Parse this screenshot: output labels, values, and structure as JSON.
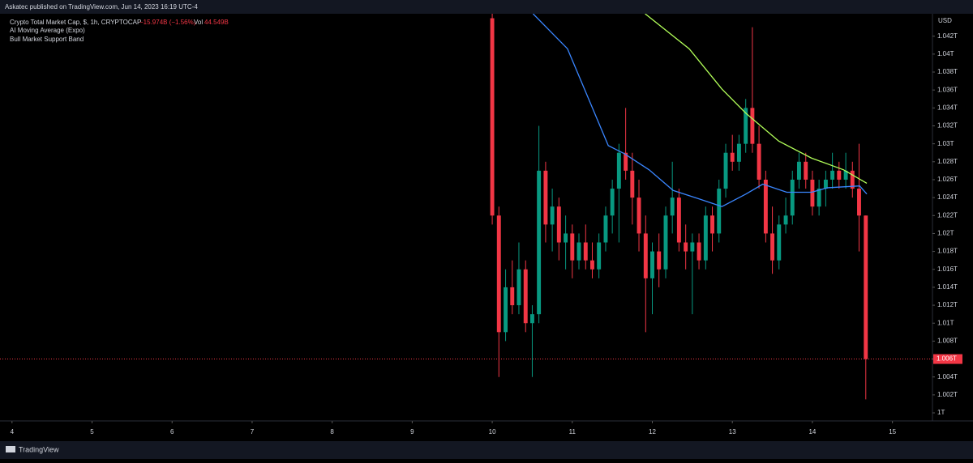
{
  "header": {
    "publisher": "Askatec published on TradingView.com, Jun 14, 2023 16:19 UTC-4"
  },
  "chart_data": {
    "type": "candlestick",
    "title": "Crypto Total Market Cap, $, 1h, CRYPTOCAP",
    "change": "−15.974B (−1.56%)",
    "volume_label": "Vol",
    "volume": "44.549B",
    "y_axis_label": "USD",
    "x": [
      10.0,
      10.083,
      10.167,
      10.25,
      10.333,
      10.417,
      10.5,
      10.583,
      10.667,
      10.75,
      10.833,
      10.917,
      11.0,
      11.083,
      11.167,
      11.25,
      11.333,
      11.417,
      11.5,
      11.583,
      11.667,
      11.75,
      11.833,
      11.917,
      12.0,
      12.083,
      12.167,
      12.25,
      12.333,
      12.417,
      12.5,
      12.583,
      12.667,
      12.75,
      12.833,
      12.917,
      13.0,
      13.083,
      13.167,
      13.25,
      13.333,
      13.417,
      13.5,
      13.583,
      13.667,
      13.75,
      13.833,
      13.917,
      14.0,
      14.083,
      14.167,
      14.25,
      14.333,
      14.417,
      14.5,
      14.583,
      14.667
    ],
    "open": [
      1.044,
      1.022,
      1.009,
      1.014,
      1.012,
      1.016,
      1.01,
      1.011,
      1.027,
      1.021,
      1.023,
      1.019,
      1.02,
      1.017,
      1.019,
      1.017,
      1.016,
      1.019,
      1.022,
      1.025,
      1.029,
      1.027,
      1.024,
      1.02,
      1.015,
      1.018,
      1.016,
      1.022,
      1.024,
      1.019,
      1.018,
      1.019,
      1.017,
      1.022,
      1.02,
      1.025,
      1.029,
      1.028,
      1.03,
      1.034,
      1.03,
      1.026,
      1.02,
      1.017,
      1.021,
      1.022,
      1.026,
      1.028,
      1.026,
      1.023,
      1.025,
      1.026,
      1.027,
      1.026,
      1.027,
      1.025,
      1.022
    ],
    "high": [
      1.0445,
      1.023,
      1.016,
      1.017,
      1.019,
      1.017,
      1.012,
      1.032,
      1.028,
      1.025,
      1.024,
      1.022,
      1.021,
      1.02,
      1.021,
      1.019,
      1.02,
      1.023,
      1.026,
      1.03,
      1.034,
      1.029,
      1.026,
      1.022,
      1.019,
      1.02,
      1.023,
      1.028,
      1.025,
      1.021,
      1.02,
      1.02,
      1.023,
      1.023,
      1.026,
      1.03,
      1.031,
      1.031,
      1.035,
      1.043,
      1.032,
      1.027,
      1.023,
      1.022,
      1.024,
      1.027,
      1.029,
      1.029,
      1.027,
      1.026,
      1.027,
      1.029,
      1.028,
      1.029,
      1.028,
      1.03,
      1.022
    ],
    "low": [
      1.021,
      1.004,
      1.008,
      1.011,
      1.011,
      1.009,
      1.004,
      1.01,
      1.019,
      1.018,
      1.017,
      1.016,
      1.015,
      1.016,
      1.016,
      1.015,
      1.015,
      1.018,
      1.02,
      1.019,
      1.026,
      1.021,
      1.018,
      1.009,
      1.011,
      1.014,
      1.015,
      1.02,
      1.018,
      1.016,
      1.011,
      1.016,
      1.016,
      1.018,
      1.019,
      1.024,
      1.027,
      1.027,
      1.029,
      1.029,
      1.025,
      1.019,
      1.0155,
      1.016,
      1.02,
      1.021,
      1.025,
      1.025,
      1.022,
      1.022,
      1.023,
      1.025,
      1.025,
      1.025,
      1.024,
      1.018,
      1.0015
    ],
    "close": [
      1.022,
      1.009,
      1.014,
      1.012,
      1.016,
      1.01,
      1.011,
      1.027,
      1.021,
      1.023,
      1.019,
      1.02,
      1.017,
      1.019,
      1.017,
      1.016,
      1.019,
      1.022,
      1.025,
      1.029,
      1.027,
      1.024,
      1.02,
      1.015,
      1.018,
      1.016,
      1.022,
      1.024,
      1.019,
      1.018,
      1.019,
      1.017,
      1.022,
      1.02,
      1.025,
      1.029,
      1.028,
      1.03,
      1.034,
      1.03,
      1.026,
      1.02,
      1.017,
      1.021,
      1.022,
      1.026,
      1.028,
      1.026,
      1.023,
      1.025,
      1.026,
      1.027,
      1.026,
      1.027,
      1.025,
      1.022,
      1.006
    ],
    "up_color": "#089981",
    "down_color": "#f23645",
    "series": [
      {
        "name": "AI Moving Average (Expo)",
        "color": "#3a86ff",
        "x": [
          10.51,
          10.94,
          11.45,
          11.65,
          11.96,
          12.26,
          12.57,
          12.87,
          13.17,
          13.38,
          13.68,
          13.99,
          14.19,
          14.59,
          14.68
        ],
        "values": [
          1.0445,
          1.0406,
          1.0298,
          1.0289,
          1.0271,
          1.0248,
          1.0239,
          1.023,
          1.0244,
          1.0255,
          1.0246,
          1.0246,
          1.0251,
          1.0253,
          1.0244
        ]
      },
      {
        "name": "Bull Market Support Band",
        "color": "#b2ff59",
        "x": [
          11.91,
          12.46,
          12.87,
          13.17,
          13.58,
          13.99,
          14.39,
          14.68
        ],
        "values": [
          1.0445,
          1.0406,
          1.0361,
          1.0334,
          1.0303,
          1.0284,
          1.0271,
          1.0256
        ]
      }
    ],
    "last_price": {
      "value": 1.006,
      "label": "1.006T"
    },
    "xlim": [
      3.85,
      15.5
    ],
    "xticks": [
      4,
      5,
      6,
      7,
      8,
      9,
      10,
      11,
      12,
      13,
      14,
      15
    ],
    "ylim": [
      0.9991,
      1.0445
    ],
    "yticks": [
      {
        "value": 1.0,
        "label": "1T"
      },
      {
        "value": 1.002,
        "label": "1.002T"
      },
      {
        "value": 1.004,
        "label": "1.004T"
      },
      {
        "value": 1.006,
        "label": "1.006T"
      },
      {
        "value": 1.008,
        "label": "1.008T"
      },
      {
        "value": 1.01,
        "label": "1.01T"
      },
      {
        "value": 1.012,
        "label": "1.012T"
      },
      {
        "value": 1.014,
        "label": "1.014T"
      },
      {
        "value": 1.016,
        "label": "1.016T"
      },
      {
        "value": 1.018,
        "label": "1.018T"
      },
      {
        "value": 1.02,
        "label": "1.02T"
      },
      {
        "value": 1.022,
        "label": "1.022T"
      },
      {
        "value": 1.024,
        "label": "1.024T"
      },
      {
        "value": 1.026,
        "label": "1.026T"
      },
      {
        "value": 1.028,
        "label": "1.028T"
      },
      {
        "value": 1.03,
        "label": "1.03T"
      },
      {
        "value": 1.032,
        "label": "1.032T"
      },
      {
        "value": 1.034,
        "label": "1.034T"
      },
      {
        "value": 1.036,
        "label": "1.036T"
      },
      {
        "value": 1.038,
        "label": "1.038T"
      },
      {
        "value": 1.04,
        "label": "1.04T"
      },
      {
        "value": 1.042,
        "label": "1.042T"
      }
    ],
    "grid": false
  },
  "footer": {
    "brand": "TradingView"
  }
}
